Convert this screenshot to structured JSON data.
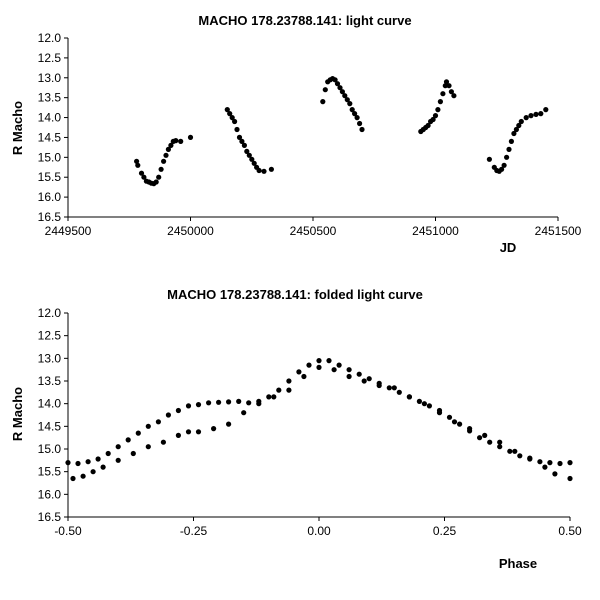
{
  "chart_data": [
    {
      "type": "scatter",
      "title": "MACHO 178.23788.141: light curve",
      "xlabel": "JD",
      "ylabel": "R Macho",
      "xlim": [
        2449500,
        2451500
      ],
      "ylim": [
        12.0,
        16.5
      ],
      "y_inverted": true,
      "grid": false,
      "marker_color": "#000000",
      "x_ticks": [
        "2449500",
        "2450000",
        "2450500",
        "2451000",
        "2451500"
      ],
      "x_tick_values": [
        2449500,
        2450000,
        2450500,
        2451000,
        2451500
      ],
      "y_ticks": [
        "12.0",
        "12.5",
        "13.0",
        "13.5",
        "14.0",
        "14.5",
        "15.0",
        "15.5",
        "16.0",
        "16.5"
      ],
      "y_tick_values": [
        12.0,
        12.5,
        13.0,
        13.5,
        14.0,
        14.5,
        15.0,
        15.5,
        16.0,
        16.5
      ],
      "points": [
        [
          2449780,
          15.1
        ],
        [
          2449785,
          15.2
        ],
        [
          2449800,
          15.4
        ],
        [
          2449810,
          15.5
        ],
        [
          2449820,
          15.6
        ],
        [
          2449830,
          15.62
        ],
        [
          2449840,
          15.65
        ],
        [
          2449850,
          15.66
        ],
        [
          2449860,
          15.62
        ],
        [
          2449870,
          15.5
        ],
        [
          2449880,
          15.3
        ],
        [
          2449890,
          15.1
        ],
        [
          2449900,
          14.95
        ],
        [
          2449910,
          14.8
        ],
        [
          2449920,
          14.7
        ],
        [
          2449930,
          14.6
        ],
        [
          2449940,
          14.58
        ],
        [
          2449960,
          14.6
        ],
        [
          2450000,
          14.5
        ],
        [
          2450150,
          13.8
        ],
        [
          2450160,
          13.9
        ],
        [
          2450170,
          14.0
        ],
        [
          2450180,
          14.1
        ],
        [
          2450190,
          14.3
        ],
        [
          2450200,
          14.5
        ],
        [
          2450210,
          14.6
        ],
        [
          2450220,
          14.7
        ],
        [
          2450230,
          14.85
        ],
        [
          2450240,
          14.95
        ],
        [
          2450250,
          15.05
        ],
        [
          2450260,
          15.15
        ],
        [
          2450270,
          15.25
        ],
        [
          2450280,
          15.33
        ],
        [
          2450300,
          15.35
        ],
        [
          2450330,
          15.3
        ],
        [
          2450540,
          13.6
        ],
        [
          2450550,
          13.3
        ],
        [
          2450560,
          13.1
        ],
        [
          2450570,
          13.05
        ],
        [
          2450580,
          13.02
        ],
        [
          2450590,
          13.05
        ],
        [
          2450600,
          13.15
        ],
        [
          2450610,
          13.25
        ],
        [
          2450620,
          13.35
        ],
        [
          2450630,
          13.45
        ],
        [
          2450640,
          13.55
        ],
        [
          2450650,
          13.65
        ],
        [
          2450660,
          13.8
        ],
        [
          2450670,
          13.9
        ],
        [
          2450680,
          14.0
        ],
        [
          2450690,
          14.15
        ],
        [
          2450700,
          14.3
        ],
        [
          2450940,
          14.35
        ],
        [
          2450950,
          14.3
        ],
        [
          2450960,
          14.25
        ],
        [
          2450970,
          14.2
        ],
        [
          2450980,
          14.1
        ],
        [
          2450990,
          14.05
        ],
        [
          2451000,
          13.95
        ],
        [
          2451010,
          13.8
        ],
        [
          2451020,
          13.6
        ],
        [
          2451030,
          13.4
        ],
        [
          2451040,
          13.2
        ],
        [
          2451045,
          13.1
        ],
        [
          2451055,
          13.2
        ],
        [
          2451065,
          13.35
        ],
        [
          2451075,
          13.45
        ],
        [
          2451220,
          15.05
        ],
        [
          2451240,
          15.25
        ],
        [
          2451250,
          15.33
        ],
        [
          2451260,
          15.35
        ],
        [
          2451270,
          15.3
        ],
        [
          2451280,
          15.2
        ],
        [
          2451290,
          15.0
        ],
        [
          2451300,
          14.8
        ],
        [
          2451310,
          14.6
        ],
        [
          2451320,
          14.4
        ],
        [
          2451330,
          14.3
        ],
        [
          2451340,
          14.2
        ],
        [
          2451350,
          14.1
        ],
        [
          2451370,
          14.0
        ],
        [
          2451390,
          13.95
        ],
        [
          2451410,
          13.92
        ],
        [
          2451430,
          13.9
        ],
        [
          2451450,
          13.8
        ]
      ]
    },
    {
      "type": "scatter",
      "title": "MACHO 178.23788.141: folded light curve",
      "xlabel": "Phase",
      "ylabel": "R Macho",
      "xlim": [
        -0.5,
        0.5
      ],
      "ylim": [
        12.0,
        16.5
      ],
      "y_inverted": true,
      "grid": false,
      "marker_color": "#000000",
      "x_ticks": [
        "-0.50",
        "-0.25",
        "0.00",
        "0.25",
        "0.50"
      ],
      "x_tick_values": [
        -0.5,
        -0.25,
        0.0,
        0.25,
        0.5
      ],
      "y_ticks": [
        "12.0",
        "12.5",
        "13.0",
        "13.5",
        "14.0",
        "14.5",
        "15.0",
        "15.5",
        "16.0",
        "16.5"
      ],
      "y_tick_values": [
        12.0,
        12.5,
        13.0,
        13.5,
        14.0,
        14.5,
        15.0,
        15.5,
        16.0,
        16.5
      ],
      "points": [
        [
          -0.5,
          15.3
        ],
        [
          -0.48,
          15.32
        ],
        [
          -0.46,
          15.28
        ],
        [
          -0.44,
          15.22
        ],
        [
          -0.42,
          15.1
        ],
        [
          -0.4,
          14.95
        ],
        [
          -0.38,
          14.8
        ],
        [
          -0.36,
          14.65
        ],
        [
          -0.34,
          14.5
        ],
        [
          -0.32,
          14.4
        ],
        [
          -0.3,
          14.25
        ],
        [
          -0.28,
          14.15
        ],
        [
          -0.26,
          14.05
        ],
        [
          -0.24,
          14.02
        ],
        [
          -0.22,
          13.98
        ],
        [
          -0.2,
          13.97
        ],
        [
          -0.18,
          13.96
        ],
        [
          -0.16,
          13.95
        ],
        [
          -0.14,
          13.98
        ],
        [
          -0.12,
          13.95
        ],
        [
          -0.1,
          13.85
        ],
        [
          -0.08,
          13.7
        ],
        [
          -0.06,
          13.5
        ],
        [
          -0.04,
          13.3
        ],
        [
          -0.02,
          13.15
        ],
        [
          0.0,
          13.05
        ],
        [
          0.02,
          13.05
        ],
        [
          0.04,
          13.15
        ],
        [
          0.06,
          13.25
        ],
        [
          0.08,
          13.35
        ],
        [
          0.1,
          13.45
        ],
        [
          0.12,
          13.55
        ],
        [
          0.14,
          13.65
        ],
        [
          0.16,
          13.75
        ],
        [
          0.18,
          13.85
        ],
        [
          0.2,
          13.95
        ],
        [
          0.22,
          14.05
        ],
        [
          0.24,
          14.15
        ],
        [
          0.26,
          14.3
        ],
        [
          0.28,
          14.45
        ],
        [
          0.3,
          14.6
        ],
        [
          0.32,
          14.75
        ],
        [
          0.34,
          14.85
        ],
        [
          0.36,
          14.95
        ],
        [
          0.38,
          15.05
        ],
        [
          0.4,
          15.15
        ],
        [
          0.42,
          15.22
        ],
        [
          0.44,
          15.28
        ],
        [
          0.46,
          15.3
        ],
        [
          0.48,
          15.32
        ],
        [
          0.5,
          15.3
        ],
        [
          -0.49,
          15.65
        ],
        [
          -0.47,
          15.6
        ],
        [
          -0.45,
          15.5
        ],
        [
          -0.43,
          15.4
        ],
        [
          -0.4,
          15.25
        ],
        [
          -0.37,
          15.1
        ],
        [
          -0.34,
          14.95
        ],
        [
          -0.31,
          14.85
        ],
        [
          -0.28,
          14.7
        ],
        [
          -0.26,
          14.62
        ],
        [
          -0.24,
          14.62
        ],
        [
          -0.21,
          14.55
        ],
        [
          -0.18,
          14.45
        ],
        [
          -0.15,
          14.2
        ],
        [
          -0.12,
          14.0
        ],
        [
          -0.09,
          13.85
        ],
        [
          -0.06,
          13.7
        ],
        [
          -0.03,
          13.4
        ],
        [
          0.0,
          13.2
        ],
        [
          0.03,
          13.25
        ],
        [
          0.06,
          13.4
        ],
        [
          0.09,
          13.5
        ],
        [
          0.12,
          13.6
        ],
        [
          0.15,
          13.65
        ],
        [
          0.18,
          13.85
        ],
        [
          0.21,
          14.0
        ],
        [
          0.24,
          14.2
        ],
        [
          0.27,
          14.4
        ],
        [
          0.3,
          14.55
        ],
        [
          0.33,
          14.7
        ],
        [
          0.36,
          14.85
        ],
        [
          0.39,
          15.05
        ],
        [
          0.42,
          15.2
        ],
        [
          0.45,
          15.4
        ],
        [
          0.47,
          15.55
        ],
        [
          0.5,
          15.65
        ]
      ]
    }
  ]
}
